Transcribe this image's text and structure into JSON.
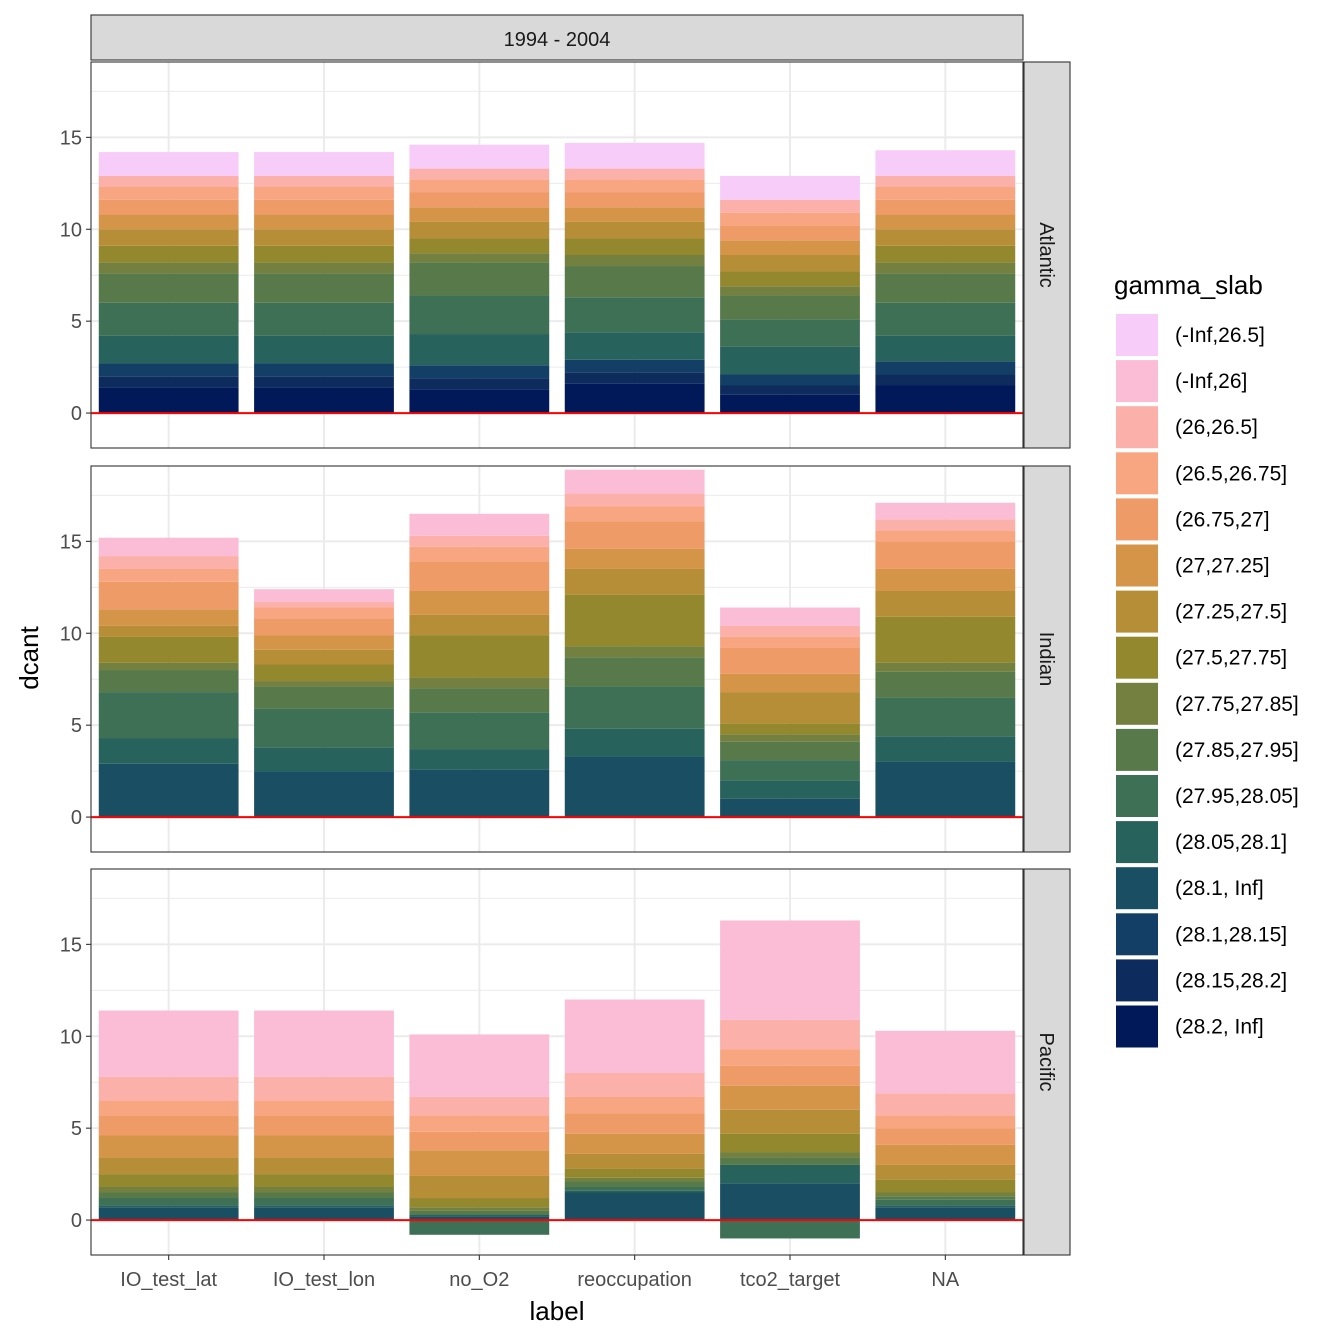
{
  "chart_data": {
    "type": "bar",
    "stacked": true,
    "facet_col_title": "1994 - 2004",
    "facet_rows": [
      "Atlantic",
      "Indian",
      "Pacific"
    ],
    "categories": [
      "IO_test_lat",
      "IO_test_lon",
      "no_O2",
      "reoccupation",
      "tco2_target",
      "NA"
    ],
    "xlabel": "label",
    "ylabel": "dcant",
    "ylim": [
      -1.9,
      19.1
    ],
    "yticks": [
      0,
      5,
      10,
      15
    ],
    "grid": true,
    "reference_line": {
      "y": 0,
      "color": "#ff0000"
    },
    "legend": {
      "title": "gamma_slab",
      "position": "right",
      "levels": [
        {
          "label": "(-Inf,26.5]",
          "color": "#F7CCF9"
        },
        {
          "label": "(-Inf,26]",
          "color": "#FBBCD6"
        },
        {
          "label": "(26,26.5]",
          "color": "#FBB0AA"
        },
        {
          "label": "(26.5,26.75]",
          "color": "#F8A682"
        },
        {
          "label": "(26.75,27]",
          "color": "#EE9B68"
        },
        {
          "label": "(27,27.25]",
          "color": "#D59549"
        },
        {
          "label": "(27.25,27.5]",
          "color": "#B68E37"
        },
        {
          "label": "(27.5,27.75]",
          "color": "#94882F"
        },
        {
          "label": "(27.75,27.85]",
          "color": "#738040"
        },
        {
          "label": "(27.85,27.95]",
          "color": "#587A4B"
        },
        {
          "label": "(27.95,28.05]",
          "color": "#3E7055"
        },
        {
          "label": "(28.05,28.1]",
          "color": "#28625C"
        },
        {
          "label": "(28.1, Inf]",
          "color": "#1A4F63"
        },
        {
          "label": "(28.1,28.15]",
          "color": "#133E65"
        },
        {
          "label": "(28.15,28.2]",
          "color": "#0E2B5E"
        },
        {
          "label": "(28.2, Inf]",
          "color": "#011959"
        }
      ]
    },
    "panels": [
      {
        "facet": "Atlantic",
        "series": [
          {
            "name": "(-Inf,26.5]",
            "values": [
              1.3,
              1.3,
              1.3,
              1.4,
              1.3,
              1.4
            ]
          },
          {
            "name": "(26,26.5]",
            "values": [
              0.6,
              0.6,
              0.6,
              0.6,
              0.7,
              0.6
            ]
          },
          {
            "name": "(26.5,26.75]",
            "values": [
              0.7,
              0.7,
              0.7,
              0.7,
              0.7,
              0.7
            ]
          },
          {
            "name": "(26.75,27]",
            "values": [
              0.8,
              0.8,
              0.8,
              0.8,
              0.8,
              0.8
            ]
          },
          {
            "name": "(27,27.25]",
            "values": [
              0.8,
              0.8,
              0.8,
              0.8,
              0.8,
              0.8
            ]
          },
          {
            "name": "(27.25,27.5]",
            "values": [
              0.9,
              0.9,
              0.9,
              0.9,
              0.9,
              0.9
            ]
          },
          {
            "name": "(27.5,27.75]",
            "values": [
              0.9,
              0.9,
              0.8,
              0.9,
              0.8,
              0.9
            ]
          },
          {
            "name": "(27.75,27.85]",
            "values": [
              0.6,
              0.6,
              0.5,
              0.6,
              0.5,
              0.6
            ]
          },
          {
            "name": "(27.85,27.95]",
            "values": [
              1.6,
              1.6,
              1.8,
              1.7,
              1.3,
              1.6
            ]
          },
          {
            "name": "(27.95,28.05]",
            "values": [
              1.8,
              1.8,
              2.1,
              1.9,
              1.5,
              1.8
            ]
          },
          {
            "name": "(28.05,28.1]",
            "values": [
              1.5,
              1.5,
              1.7,
              1.5,
              1.5,
              1.4
            ]
          },
          {
            "name": "(28.1,28.15]",
            "values": [
              0.7,
              0.7,
              0.7,
              0.7,
              0.6,
              0.7
            ]
          },
          {
            "name": "(28.15,28.2]",
            "values": [
              0.6,
              0.6,
              0.6,
              0.6,
              0.5,
              0.6
            ]
          },
          {
            "name": "(28.2, Inf]",
            "values": [
              1.4,
              1.4,
              1.3,
              1.6,
              1.0,
              1.5
            ]
          }
        ]
      },
      {
        "facet": "Indian",
        "series": [
          {
            "name": "(-Inf,26]",
            "values": [
              1.0,
              0.7,
              1.2,
              1.3,
              1.0,
              0.9
            ]
          },
          {
            "name": "(26,26.5]",
            "values": [
              0.7,
              0.3,
              0.6,
              0.7,
              0.6,
              0.6
            ]
          },
          {
            "name": "(26.5,26.75]",
            "values": [
              0.7,
              0.6,
              0.8,
              0.8,
              0.6,
              0.6
            ]
          },
          {
            "name": "(26.75,27]",
            "values": [
              1.5,
              0.9,
              1.6,
              1.5,
              1.4,
              1.5
            ]
          },
          {
            "name": "(27,27.25]",
            "values": [
              0.9,
              0.8,
              1.3,
              1.1,
              1.0,
              1.2
            ]
          },
          {
            "name": "(27.25,27.5]",
            "values": [
              0.6,
              0.8,
              1.1,
              1.4,
              1.7,
              1.4
            ]
          },
          {
            "name": "(27.5,27.75]",
            "values": [
              1.4,
              0.9,
              2.3,
              2.8,
              0.6,
              2.5
            ]
          },
          {
            "name": "(27.75,27.85]",
            "values": [
              0.4,
              0.3,
              0.6,
              0.6,
              0.4,
              0.5
            ]
          },
          {
            "name": "(27.85,27.95]",
            "values": [
              1.2,
              1.2,
              1.3,
              1.6,
              1.0,
              1.4
            ]
          },
          {
            "name": "(27.95,28.05]",
            "values": [
              2.5,
              2.1,
              2.0,
              2.3,
              1.1,
              2.1
            ]
          },
          {
            "name": "(28.05,28.1]",
            "values": [
              1.4,
              1.3,
              1.1,
              1.5,
              1.0,
              1.4
            ]
          },
          {
            "name": "(28.1, Inf]",
            "values": [
              2.9,
              2.5,
              2.6,
              3.3,
              1.0,
              3.0
            ]
          }
        ]
      },
      {
        "facet": "Pacific",
        "series": [
          {
            "name": "(-Inf,26]",
            "values": [
              3.6,
              3.6,
              3.4,
              4.0,
              5.4,
              3.4
            ]
          },
          {
            "name": "(26,26.5]",
            "values": [
              1.3,
              1.3,
              1.0,
              1.3,
              1.6,
              1.2
            ]
          },
          {
            "name": "(26.5,26.75]",
            "values": [
              0.8,
              0.8,
              0.9,
              0.9,
              0.9,
              0.7
            ]
          },
          {
            "name": "(26.75,27]",
            "values": [
              1.1,
              1.1,
              1.0,
              1.1,
              1.1,
              0.9
            ]
          },
          {
            "name": "(27,27.25]",
            "values": [
              1.2,
              1.2,
              1.4,
              1.1,
              1.3,
              1.1
            ]
          },
          {
            "name": "(27.25,27.5]",
            "values": [
              0.9,
              0.9,
              1.2,
              0.8,
              1.3,
              0.8
            ]
          },
          {
            "name": "(27.5,27.75]",
            "values": [
              0.7,
              0.7,
              0.5,
              0.5,
              1.0,
              0.7
            ]
          },
          {
            "name": "(27.75,27.85]",
            "values": [
              0.3,
              0.3,
              0.2,
              0.2,
              0.3,
              0.2
            ]
          },
          {
            "name": "(27.85,27.95]",
            "values": [
              0.3,
              0.3,
              0.2,
              0.3,
              0.4,
              0.2
            ]
          },
          {
            "name": "(27.95,28.05]",
            "values": [
              0.4,
              0.4,
              -0.8,
              0.2,
              -1.0,
              0.3
            ]
          },
          {
            "name": "(28.05,28.1]",
            "values": [
              0.1,
              0.1,
              0.1,
              0.1,
              1.0,
              0.1
            ]
          },
          {
            "name": "(28.1, Inf]",
            "values": [
              0.7,
              0.7,
              0.2,
              1.5,
              2.0,
              0.7
            ]
          }
        ]
      }
    ]
  }
}
